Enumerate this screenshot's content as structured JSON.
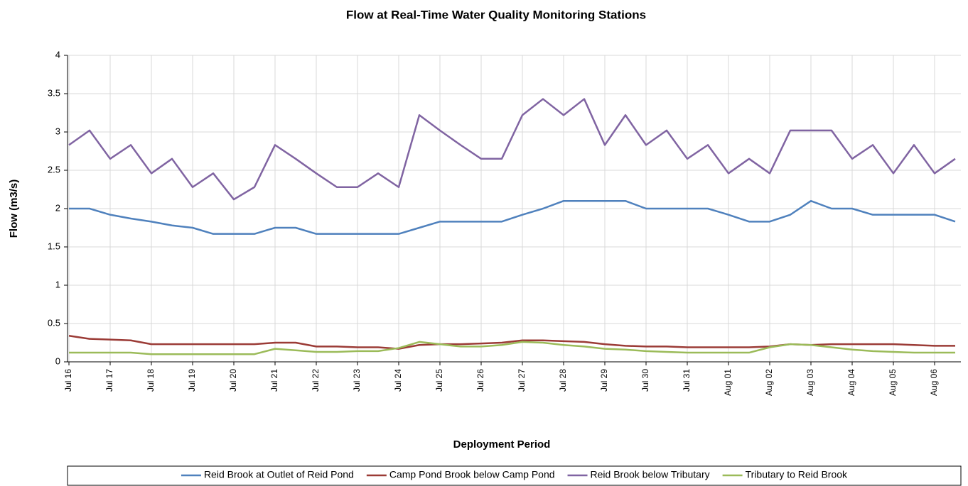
{
  "chart_data": {
    "type": "line",
    "title": "Flow at Real-Time Water Quality Monitoring Stations",
    "x_label": "Deployment Period",
    "y_label": "Flow (m3/s)",
    "categories": [
      "Jul 16",
      null,
      "Jul 17",
      null,
      "Jul 18",
      null,
      "Jul 19",
      null,
      "Jul 20",
      null,
      "Jul 21",
      null,
      "Jul 22",
      null,
      "Jul 23",
      null,
      "Jul 24",
      null,
      "Jul 25",
      null,
      "Jul 26",
      null,
      "Jul 27",
      null,
      "Jul 28",
      null,
      "Jul 29",
      null,
      "Jul 30",
      null,
      "Jul 31",
      null,
      "Aug 01",
      null,
      "Aug 02",
      null,
      "Aug 03",
      null,
      "Aug 04",
      null,
      "Aug 05",
      null,
      "Aug 06",
      null
    ],
    "series": [
      {
        "name": "Reid Brook at Outlet of Reid Pond",
        "color": "#4f81bd",
        "values": [
          2.0,
          2.0,
          1.92,
          1.87,
          1.83,
          1.78,
          1.75,
          1.67,
          1.67,
          1.67,
          1.75,
          1.75,
          1.67,
          1.67,
          1.67,
          1.67,
          1.67,
          1.75,
          1.83,
          1.83,
          1.83,
          1.83,
          1.92,
          2.0,
          2.1,
          2.1,
          2.1,
          2.1,
          2.0,
          2.0,
          2.0,
          2.0,
          1.92,
          1.83,
          1.83,
          1.92,
          2.1,
          2.0,
          2.0,
          1.92,
          1.92,
          1.92,
          1.92,
          1.83
        ]
      },
      {
        "name": "Camp Pond Brook below Camp Pond",
        "color": "#9b3b36",
        "values": [
          0.34,
          0.3,
          0.29,
          0.28,
          0.23,
          0.23,
          0.23,
          0.23,
          0.23,
          0.23,
          0.25,
          0.25,
          0.2,
          0.2,
          0.19,
          0.19,
          0.17,
          0.22,
          0.23,
          0.23,
          0.24,
          0.25,
          0.28,
          0.28,
          0.27,
          0.26,
          0.23,
          0.21,
          0.2,
          0.2,
          0.19,
          0.19,
          0.19,
          0.19,
          0.2,
          0.23,
          0.22,
          0.23,
          0.23,
          0.23,
          0.23,
          0.22,
          0.21,
          0.21
        ]
      },
      {
        "name": "Reid Brook below Tributary",
        "color": "#8064a2",
        "values": [
          2.83,
          3.02,
          2.65,
          2.83,
          2.46,
          2.65,
          2.28,
          2.46,
          2.12,
          2.28,
          2.83,
          2.65,
          2.46,
          2.28,
          2.28,
          2.46,
          2.28,
          3.22,
          3.02,
          2.83,
          2.65,
          2.65,
          3.22,
          3.43,
          3.22,
          3.43,
          2.83,
          3.22,
          2.83,
          3.02,
          2.65,
          2.83,
          2.46,
          2.65,
          2.46,
          3.02,
          3.02,
          3.02,
          2.65,
          2.83,
          2.46,
          2.83,
          2.46,
          2.65
        ]
      },
      {
        "name": "Tributary to Reid Brook",
        "color": "#9bbb59",
        "values": [
          0.12,
          0.12,
          0.12,
          0.12,
          0.1,
          0.1,
          0.1,
          0.1,
          0.1,
          0.1,
          0.17,
          0.15,
          0.13,
          0.13,
          0.14,
          0.14,
          0.18,
          0.26,
          0.23,
          0.2,
          0.2,
          0.22,
          0.26,
          0.25,
          0.22,
          0.2,
          0.17,
          0.16,
          0.14,
          0.13,
          0.12,
          0.12,
          0.12,
          0.12,
          0.19,
          0.23,
          0.22,
          0.19,
          0.16,
          0.14,
          0.13,
          0.12,
          0.12,
          0.12
        ]
      }
    ],
    "ylim": [
      0,
      4
    ],
    "yticks": [
      0,
      0.5,
      1,
      1.5,
      2,
      2.5,
      3,
      3.5,
      4
    ],
    "grid": true,
    "legend": "bottom"
  }
}
